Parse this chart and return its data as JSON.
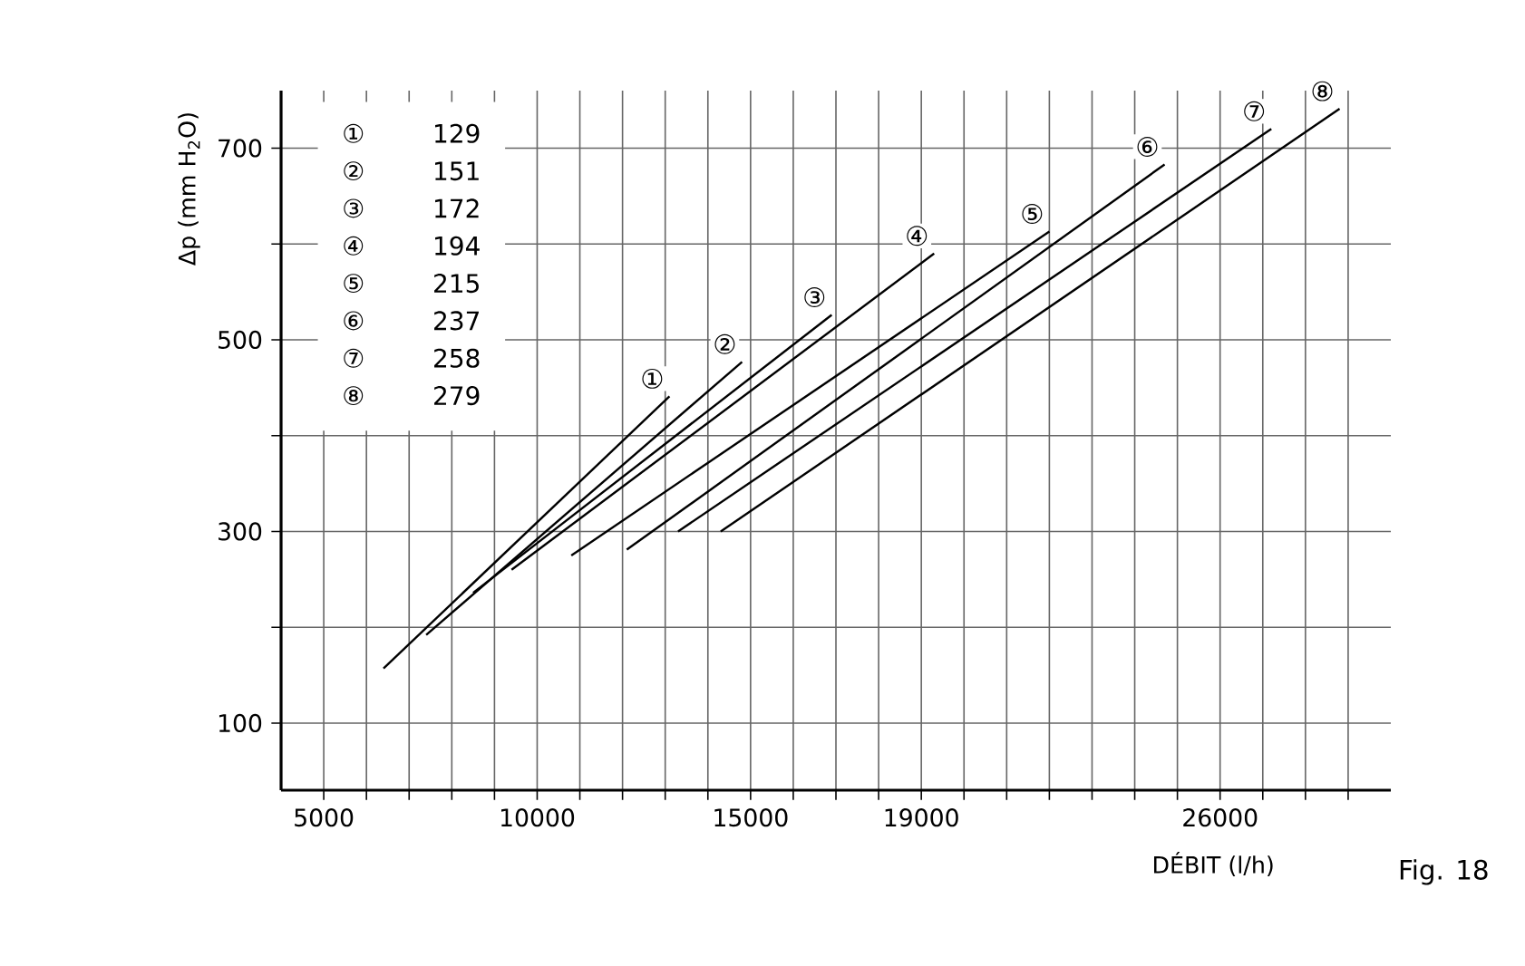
{
  "chart_data": {
    "type": "line",
    "xlabel": "DÉBIT (l/h)",
    "ylabel": "Δp (mm H$_{2}$O)",
    "xlim": [
      4000,
      30000
    ],
    "ylim": [
      30,
      760
    ],
    "xticks": [
      5000,
      {
        "value": 6000,
        "label": null
      },
      {
        "value": 7000,
        "label": null
      },
      {
        "value": 8000,
        "label": null
      },
      {
        "value": 9000,
        "label": null
      },
      10000,
      {
        "value": 11000,
        "label": null
      },
      {
        "value": 12000,
        "label": null
      },
      {
        "value": 13000,
        "label": null
      },
      {
        "value": 14000,
        "label": null
      },
      15000,
      {
        "value": 16000,
        "label": null
      },
      {
        "value": 17000,
        "label": null
      },
      {
        "value": 18000,
        "label": null
      },
      19000,
      {
        "value": 20000,
        "label": null
      },
      {
        "value": 21000,
        "label": null
      },
      {
        "value": 22000,
        "label": null
      },
      {
        "value": 23000,
        "label": null
      },
      {
        "value": 24000,
        "label": null
      },
      {
        "value": 25000,
        "label": null
      },
      26000,
      {
        "value": 27000,
        "label": null
      },
      {
        "value": 28000,
        "label": null
      },
      {
        "value": 29000,
        "label": null
      }
    ],
    "yticks": [
      100,
      {
        "value": 200,
        "label": null
      },
      300,
      {
        "value": 400,
        "label": null
      },
      500,
      {
        "value": 600,
        "label": null
      },
      700
    ],
    "grid": true,
    "color": "#000000",
    "series": [
      {
        "x": [
          6400,
          13100
        ],
        "values": [
          157,
          441
        ]
      },
      {
        "x": [
          7400,
          14800
        ],
        "values": [
          192,
          477
        ]
      },
      {
        "x": [
          8500,
          16900
        ],
        "values": [
          236,
          526
        ]
      },
      {
        "x": [
          9400,
          19300
        ],
        "values": [
          260,
          590
        ]
      },
      {
        "x": [
          10800,
          22000
        ],
        "values": [
          275,
          613
        ]
      },
      {
        "x": [
          12100,
          24700
        ],
        "values": [
          281,
          683
        ]
      },
      {
        "x": [
          13300,
          27200
        ],
        "values": [
          300,
          720
        ]
      },
      {
        "x": [
          14300,
          28800
        ],
        "values": [
          300,
          741
        ]
      }
    ],
    "annotations": [
      "①",
      "②",
      "③",
      "④",
      "⑤",
      "⑥",
      "⑦",
      "⑧",
      "129",
      "151",
      "172",
      "194",
      "215",
      "237",
      "258",
      "279",
      "Fig. 18",
      {
        "text": "①",
        "x": 13100,
        "y": 441
      },
      {
        "text": "②",
        "x": 14800,
        "y": 477
      },
      {
        "text": "③",
        "x": 16900,
        "y": 526
      },
      {
        "text": "④",
        "x": 19300,
        "y": 590
      },
      {
        "text": "⑤",
        "x": 22000,
        "y": 613
      },
      {
        "text": "⑥",
        "x": 24700,
        "y": 683
      },
      {
        "text": "⑦",
        "x": 27200,
        "y": 720
      },
      {
        "text": "⑧",
        "x": 28800,
        "y": 741
      }
    ]
  }
}
